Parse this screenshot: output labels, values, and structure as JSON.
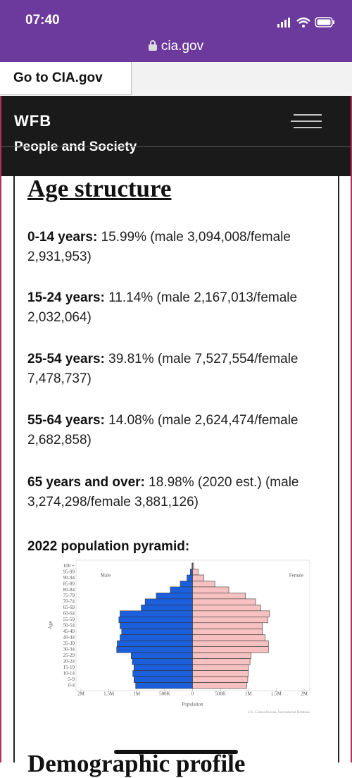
{
  "status_bar": {
    "time": "07:40",
    "url": "cia.gov"
  },
  "top_link": "Go to CIA.gov",
  "header": {
    "logo": "WFB",
    "section": "People and Society"
  },
  "section": {
    "title": "Age structure",
    "entries": [
      {
        "label": "0-14 years:",
        "text": "15.99% (male 3,094,008/female 2,931,953)"
      },
      {
        "label": "15-24 years:",
        "text": "11.14% (male 2,167,013/female 2,032,064)"
      },
      {
        "label": "25-54 years:",
        "text": "39.81% (male 7,527,554/female 7,478,737)"
      },
      {
        "label": "55-64 years:",
        "text": "14.08% (male 2,624,474/female 2,682,858)"
      },
      {
        "label": "65 years and over:",
        "text": "18.98% (2020 est.) (male 3,274,298/female 3,881,126)"
      }
    ],
    "next_title": "Demographic profile"
  },
  "chart_data": {
    "type": "pyramid",
    "title": "2022 population pyramid:",
    "categories": [
      "100 +",
      "95-99",
      "90-94",
      "85-89",
      "80-84",
      "75-79",
      "70-74",
      "65-69",
      "60-64",
      "55-59",
      "50-54",
      "45-49",
      "40-44",
      "35-39",
      "30-34",
      "25-29",
      "20-24",
      "15-19",
      "10-14",
      "5-9",
      "0-4"
    ],
    "series": [
      {
        "name": "Male",
        "color": "#1c5fdc",
        "values": [
          10000,
          40000,
          100000,
          220000,
          400000,
          650000,
          850000,
          920000,
          1300000,
          1320000,
          1300000,
          1270000,
          1300000,
          1350000,
          1360000,
          1100000,
          1080000,
          1050000,
          1070000,
          1050000,
          1020000
        ]
      },
      {
        "name": "Female",
        "color": "#f7c1c1",
        "values": [
          20000,
          100000,
          200000,
          400000,
          650000,
          950000,
          1130000,
          1220000,
          1380000,
          1350000,
          1250000,
          1250000,
          1300000,
          1360000,
          1360000,
          1050000,
          1030000,
          1000000,
          1000000,
          990000,
          970000
        ]
      }
    ],
    "xlim": [
      -2000000,
      2000000
    ],
    "xticks": [
      {
        "value": -2000000,
        "label": "2M"
      },
      {
        "value": -1500000,
        "label": "1.5M"
      },
      {
        "value": -1000000,
        "label": "1M"
      },
      {
        "value": -500000,
        "label": "500K"
      },
      0,
      {
        "value": 500000,
        "label": "500K"
      },
      {
        "value": 1000000,
        "label": "1M"
      },
      {
        "value": 1500000,
        "label": "1.5M"
      },
      {
        "value": 2000000,
        "label": "2M"
      }
    ],
    "xlabel": "Population",
    "ylabel": "Age",
    "source": "U.S. Census Bureau, International Database"
  }
}
